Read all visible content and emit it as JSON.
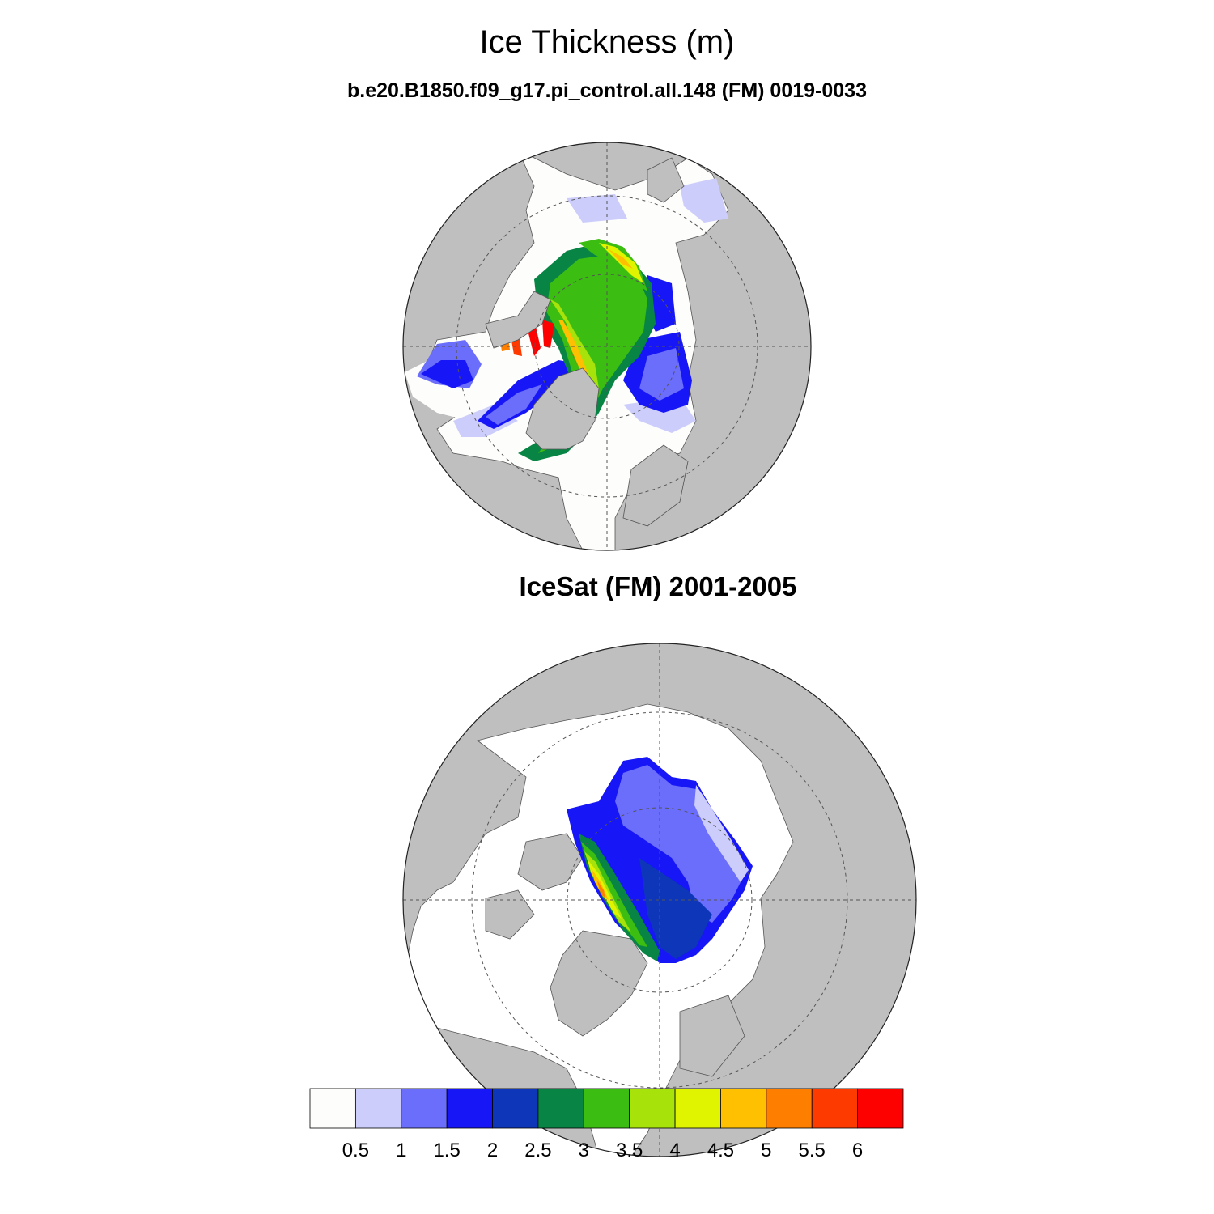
{
  "title": "Ice Thickness (m)",
  "panels": [
    {
      "subtitle": "b.e20.B1850.f09_g17.pi_control.all.148 (FM) 0019-0033"
    },
    {
      "subtitle": "IceSat (FM) 2001-2005"
    }
  ],
  "colors": {
    "land": "#bfbfbf",
    "ocean": "#fdfdfb",
    "grid": "#555555"
  },
  "colorbar": {
    "levels": [
      "0.5",
      "1",
      "1.5",
      "2",
      "2.5",
      "3",
      "3.5",
      "4",
      "4.5",
      "5",
      "5.5",
      "6"
    ],
    "colors": [
      "#fdfdfb",
      "#cccdfb",
      "#6b6dfb",
      "#1616f7",
      "#0d36b8",
      "#088545",
      "#3bbd12",
      "#a7e20a",
      "#e0f400",
      "#fec000",
      "#fe7e00",
      "#fd3b00",
      "#fd0000"
    ]
  }
}
